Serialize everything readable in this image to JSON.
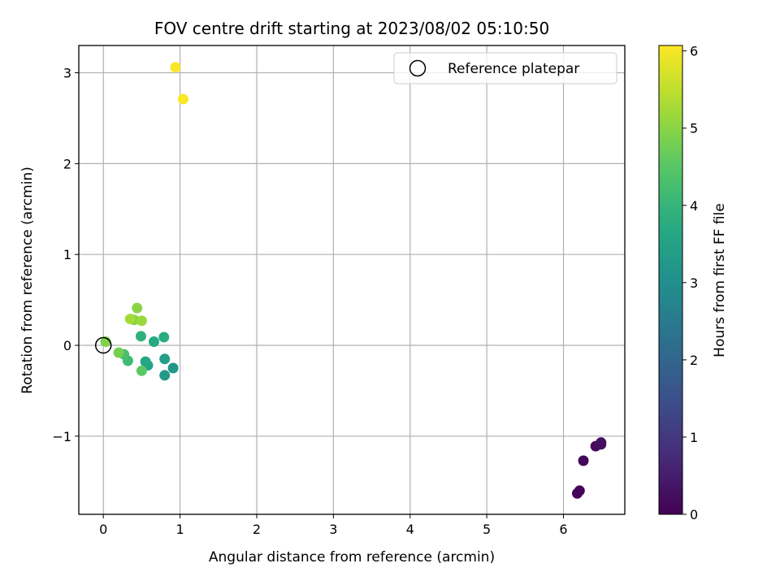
{
  "chart_data": {
    "type": "scatter",
    "title": "FOV centre drift starting at 2023/08/02 05:10:50",
    "xlabel": "Angular distance from reference (arcmin)",
    "ylabel": "Rotation from reference (arcmin)",
    "xlim": [
      -0.32,
      6.8
    ],
    "ylim": [
      -1.86,
      3.3
    ],
    "xticks": [
      0,
      1,
      2,
      3,
      4,
      5,
      6
    ],
    "yticks": [
      -1,
      0,
      1,
      2,
      3
    ],
    "ytick_labels": [
      "−1",
      "0",
      "1",
      "2",
      "3"
    ],
    "grid": true,
    "legend": {
      "position": "top-right",
      "label": "Reference platepar",
      "marker": "open-circle"
    },
    "colorbar": {
      "label": "Hours from first FF file",
      "range": [
        0,
        6.07
      ],
      "ticks": [
        0,
        1,
        2,
        3,
        4,
        5,
        6
      ],
      "colormap": "viridis"
    },
    "reference_point": {
      "x": 0,
      "y": 0
    },
    "points": [
      {
        "x": 6.18,
        "y": -1.63,
        "hours": 0.03
      },
      {
        "x": 6.21,
        "y": -1.6,
        "hours": 0.08
      },
      {
        "x": 6.26,
        "y": -1.27,
        "hours": 0.12
      },
      {
        "x": 6.42,
        "y": -1.11,
        "hours": 0.16
      },
      {
        "x": 6.49,
        "y": -1.07,
        "hours": 0.2
      },
      {
        "x": 6.49,
        "y": -1.09,
        "hours": 0.24
      },
      {
        "x": 0.91,
        "y": -0.25,
        "hours": 3.2
      },
      {
        "x": 0.8,
        "y": -0.33,
        "hours": 3.3
      },
      {
        "x": 0.8,
        "y": -0.15,
        "hours": 3.4
      },
      {
        "x": 0.58,
        "y": -0.22,
        "hours": 3.5
      },
      {
        "x": 0.55,
        "y": -0.18,
        "hours": 3.6
      },
      {
        "x": 0.66,
        "y": 0.04,
        "hours": 3.7
      },
      {
        "x": 0.79,
        "y": 0.09,
        "hours": 3.8
      },
      {
        "x": 0.49,
        "y": 0.1,
        "hours": 3.9
      },
      {
        "x": 0.32,
        "y": -0.17,
        "hours": 4.15
      },
      {
        "x": 0.27,
        "y": -0.1,
        "hours": 4.3
      },
      {
        "x": 0.5,
        "y": -0.28,
        "hours": 4.55
      },
      {
        "x": 0.2,
        "y": -0.08,
        "hours": 4.8
      },
      {
        "x": 0.03,
        "y": 0.04,
        "hours": 4.9
      },
      {
        "x": 0.4,
        "y": 0.28,
        "hours": 4.95
      },
      {
        "x": 0.44,
        "y": 0.41,
        "hours": 5.0
      },
      {
        "x": 0.5,
        "y": 0.27,
        "hours": 5.15
      },
      {
        "x": 0.35,
        "y": 0.29,
        "hours": 5.25
      },
      {
        "x": 0.94,
        "y": 3.06,
        "hours": 6.02
      },
      {
        "x": 1.04,
        "y": 2.71,
        "hours": 6.06
      }
    ]
  }
}
